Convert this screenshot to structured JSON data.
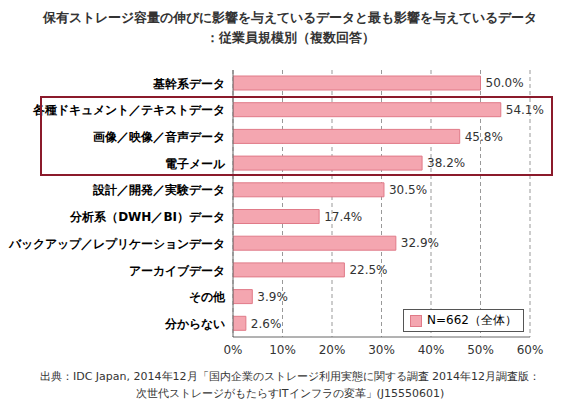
{
  "chart_data": {
    "type": "bar",
    "orientation": "horizontal",
    "title": "保有ストレージ容量の伸びに影響を与えているデータと最も影響を与えているデータ",
    "subtitle": "：従業員規模別（複数回答）",
    "categories": [
      "基幹系データ",
      "各種ドキュメント／テキストデータ",
      "画像／映像／音声データ",
      "電子メール",
      "設計／開発／実験データ",
      "分析系（DWH／BI）データ",
      "バックアップ／レプリケーションデータ",
      "アーカイブデータ",
      "その他",
      "分からない"
    ],
    "series": [
      {
        "name": "N=662（全体）",
        "color": "#f4a6b0",
        "values": [
          50.0,
          54.1,
          45.8,
          38.2,
          30.5,
          17.4,
          32.9,
          22.5,
          3.9,
          2.6
        ],
        "value_labels": [
          "50.0%",
          "54.1%",
          "45.8%",
          "38.2%",
          "30.5%",
          "17.4%",
          "32.9%",
          "22.5%",
          "3.9%",
          "2.6%"
        ]
      }
    ],
    "xlim": [
      0,
      60
    ],
    "xticks": [
      {
        "value": 0,
        "label": "0%"
      },
      {
        "value": 10,
        "label": "10%"
      },
      {
        "value": 20,
        "label": "20%"
      },
      {
        "value": 30,
        "label": "30%"
      },
      {
        "value": 40,
        "label": "40%"
      },
      {
        "value": 50,
        "label": "50%"
      },
      {
        "value": 60,
        "label": "60%"
      }
    ],
    "grid": true,
    "legend": "lower right",
    "data_labels": true,
    "source": [
      "出典：IDC Japan, 2014年12月「国内企業のストレージ利用実態に関する調査 2014年12月調査版：",
      "次世代ストレージがもたらすITインフラの変革」(J15550601)"
    ]
  }
}
